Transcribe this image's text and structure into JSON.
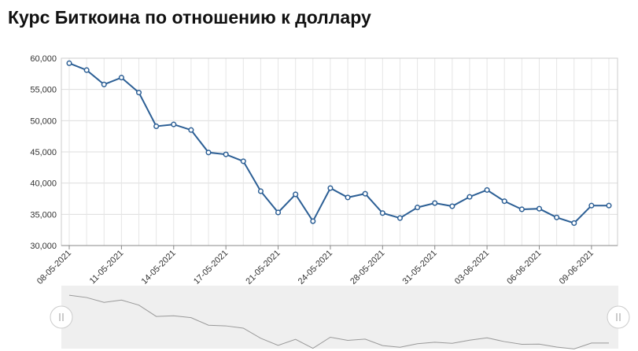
{
  "chart_data": {
    "type": "line",
    "title": "Курс Биткоина по отношению к доллару",
    "categories": [
      "08-05-2021",
      null,
      null,
      "11-05-2021",
      null,
      null,
      "14-05-2021",
      null,
      null,
      "17-05-2021",
      null,
      null,
      "21-05-2021",
      null,
      null,
      "24-05-2021",
      null,
      null,
      "28-05-2021",
      null,
      null,
      "31-05-2021",
      null,
      null,
      "03-06-2021",
      null,
      null,
      "06-06-2021",
      null,
      null,
      "09-06-2021",
      null
    ],
    "series": [
      {
        "color": "#2c5f95",
        "values": [
          59200,
          58100,
          55800,
          56900,
          54500,
          49100,
          49400,
          48500,
          44900,
          44600,
          43500,
          38700,
          35300,
          38200,
          33900,
          39200,
          37700,
          38300,
          35200,
          34400,
          36100,
          36800,
          36300,
          37800,
          38900,
          37100,
          35800,
          35900,
          34500,
          33600,
          36400,
          36400
        ]
      }
    ],
    "ylim": [
      30000,
      60000
    ],
    "yticks": [
      {
        "value": 30000,
        "label": "30,000"
      },
      {
        "value": 35000,
        "label": "35,000"
      },
      {
        "value": 40000,
        "label": "40,000"
      },
      {
        "value": 45000,
        "label": "45,000"
      },
      {
        "value": 50000,
        "label": "50,000"
      },
      {
        "value": 55000,
        "label": "55,000"
      },
      {
        "value": 60000,
        "label": "60,000"
      }
    ],
    "grid": true
  }
}
